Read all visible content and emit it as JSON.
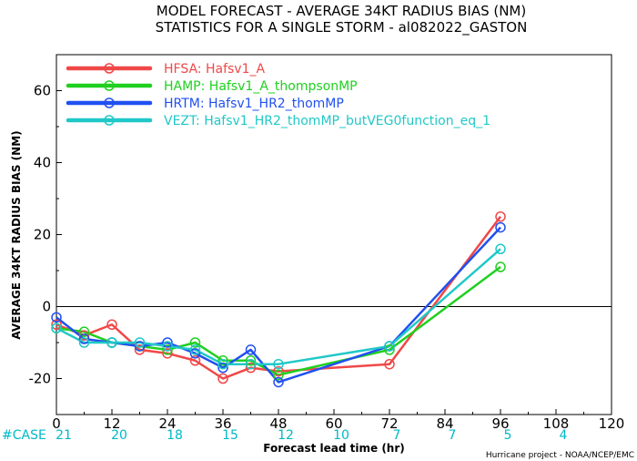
{
  "chart_data": {
    "type": "line",
    "title": "MODEL FORECAST - AVERAGE 34KT RADIUS BIAS (NM)",
    "subtitle": "STATISTICS FOR A SINGLE STORM - al082022_GASTON",
    "xlabel": "Forecast lead time (hr)",
    "ylabel": "AVERAGE 34KT RADIUS BIAS (NM)",
    "xlim": [
      0,
      120
    ],
    "ylim": [
      -30,
      70
    ],
    "xticks": [
      0,
      12,
      24,
      36,
      48,
      60,
      72,
      84,
      96,
      108,
      120
    ],
    "yticks": [
      -20,
      0,
      20,
      40,
      60
    ],
    "zero_line": true,
    "legend_position": "top-left",
    "series": [
      {
        "name": "HFSA",
        "label": "HFSA:  Hafsv1_A",
        "color": "#f04848",
        "x": [
          0,
          6,
          12,
          18,
          24,
          30,
          36,
          42,
          48,
          72,
          96
        ],
        "y": [
          -5,
          -8,
          -5,
          -12,
          -13,
          -15,
          -20,
          -17,
          -18,
          -16,
          25
        ]
      },
      {
        "name": "HAMP",
        "label": "HAMP:  Hafsv1_A_thompsonMP",
        "color": "#20d020",
        "x": [
          0,
          6,
          12,
          18,
          24,
          30,
          36,
          42,
          48,
          72,
          96
        ],
        "y": [
          -6,
          -7,
          -10,
          -11,
          -12,
          -10,
          -15,
          -15,
          -19,
          -12,
          11
        ]
      },
      {
        "name": "HRTM",
        "label": "HRTM:  Hafsv1_HR2_thomMP",
        "color": "#2050f0",
        "x": [
          0,
          6,
          12,
          18,
          24,
          30,
          36,
          42,
          48,
          72,
          96
        ],
        "y": [
          -3,
          -9,
          -10,
          -11,
          -10,
          -13,
          -17,
          -12,
          -21,
          -11,
          22
        ]
      },
      {
        "name": "VEZT",
        "label": "VEZT:  Hafsv1_HR2_thomMP_butVEG0function_eq_1",
        "color": "#20c8c8",
        "x": [
          0,
          6,
          12,
          18,
          24,
          30,
          36,
          42,
          48,
          72,
          96
        ],
        "y": [
          -6,
          -10,
          -10,
          -10,
          -11,
          -12,
          -16,
          -16,
          -16,
          -11,
          16
        ]
      }
    ],
    "case_label": "#CASE",
    "cases": [
      {
        "x": 0,
        "n": "21"
      },
      {
        "x": 12,
        "n": "20"
      },
      {
        "x": 24,
        "n": "18"
      },
      {
        "x": 36,
        "n": "15"
      },
      {
        "x": 48,
        "n": "12"
      },
      {
        "x": 60,
        "n": "10"
      },
      {
        "x": 72,
        "n": "7"
      },
      {
        "x": 84,
        "n": "7"
      },
      {
        "x": 96,
        "n": "5"
      },
      {
        "x": 108,
        "n": "4"
      }
    ],
    "credit": "Hurricane project - NOAA/NCEP/EMC"
  }
}
